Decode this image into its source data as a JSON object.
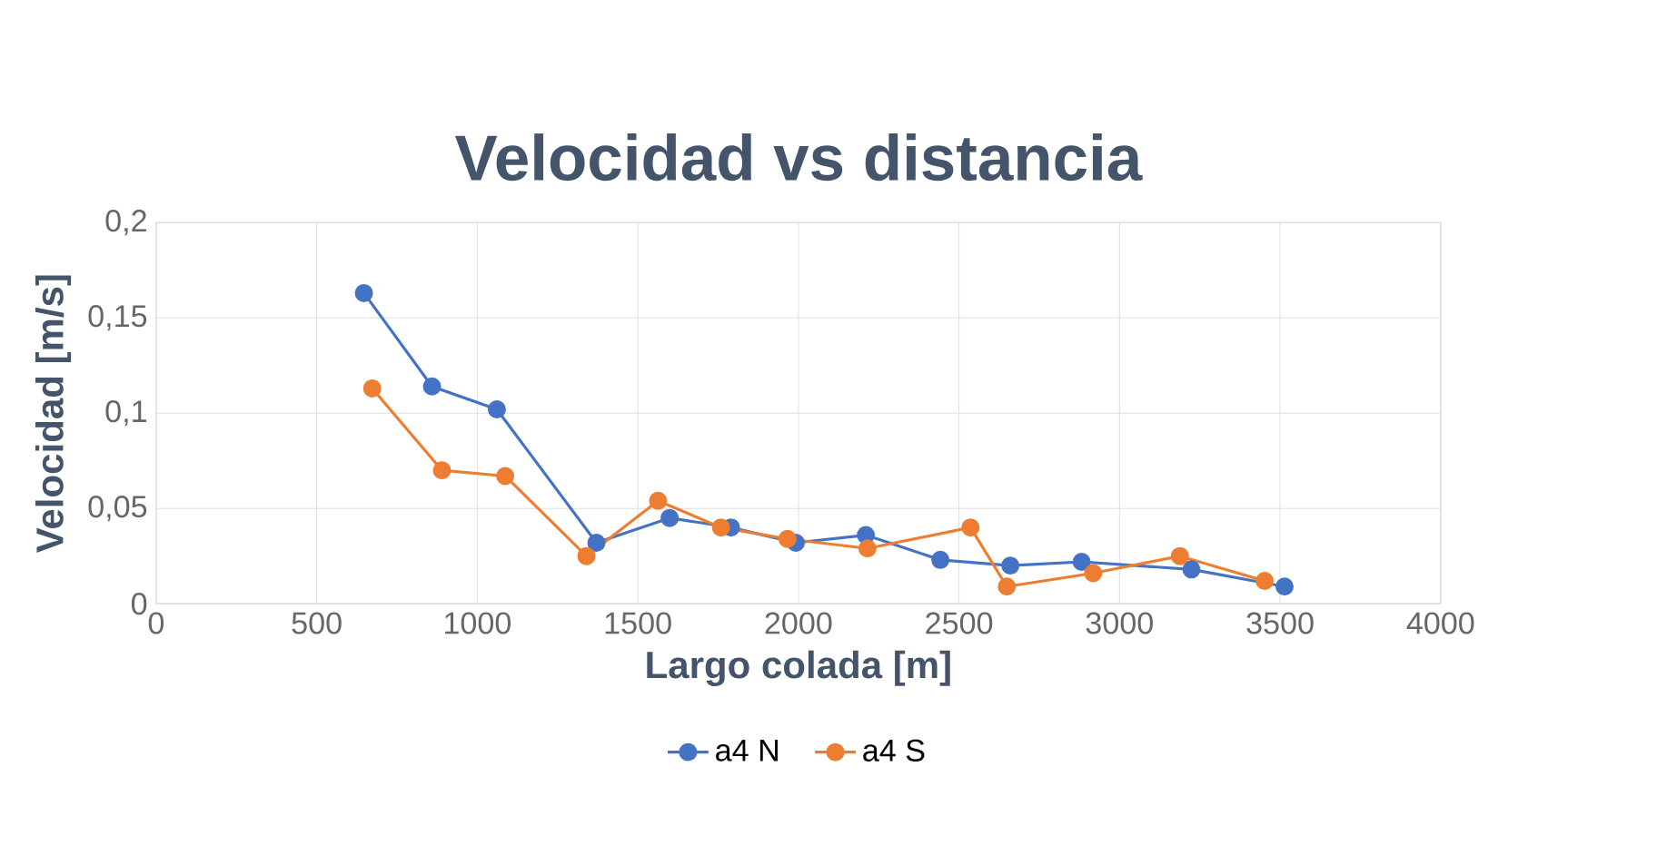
{
  "chart_data": {
    "type": "line",
    "title": "Velocidad vs distancia",
    "xlabel": "Largo colada [m]",
    "ylabel": "Velocidad [m/s]",
    "xlim": [
      0,
      4000
    ],
    "xticks": [
      0,
      500,
      1000,
      1500,
      2000,
      2500,
      3000,
      3500,
      4000
    ],
    "ylim": [
      0,
      0.2
    ],
    "yticks": [
      {
        "value": 0,
        "label": "0"
      },
      {
        "value": 0.05,
        "label": "0,05"
      },
      {
        "value": 0.1,
        "label": "0,1"
      },
      {
        "value": 0.15,
        "label": "0,15"
      },
      {
        "value": 0.2,
        "label": "0,2"
      }
    ],
    "grid": true,
    "legend": "bottom",
    "marker": "circle",
    "line_style": "solid",
    "series": [
      {
        "name": "a4 N",
        "color": "#4472c4",
        "x": [
          647,
          859,
          1061,
          1371,
          1599,
          1790,
          1992,
          2210,
          2442,
          2660,
          2882,
          3224,
          3514
        ],
        "values": [
          0.163,
          0.114,
          0.102,
          0.032,
          0.045,
          0.04,
          0.032,
          0.036,
          0.023,
          0.02,
          0.022,
          0.018,
          0.009
        ]
      },
      {
        "name": "a4 S",
        "color": "#ed7d31",
        "x": [
          673,
          890,
          1087,
          1340,
          1563,
          1759,
          1966,
          2215,
          2536,
          2649,
          2918,
          3188,
          3452
        ],
        "values": [
          0.113,
          0.07,
          0.067,
          0.025,
          0.054,
          0.04,
          0.034,
          0.029,
          0.04,
          0.009,
          0.016,
          0.025,
          0.012
        ]
      }
    ]
  }
}
